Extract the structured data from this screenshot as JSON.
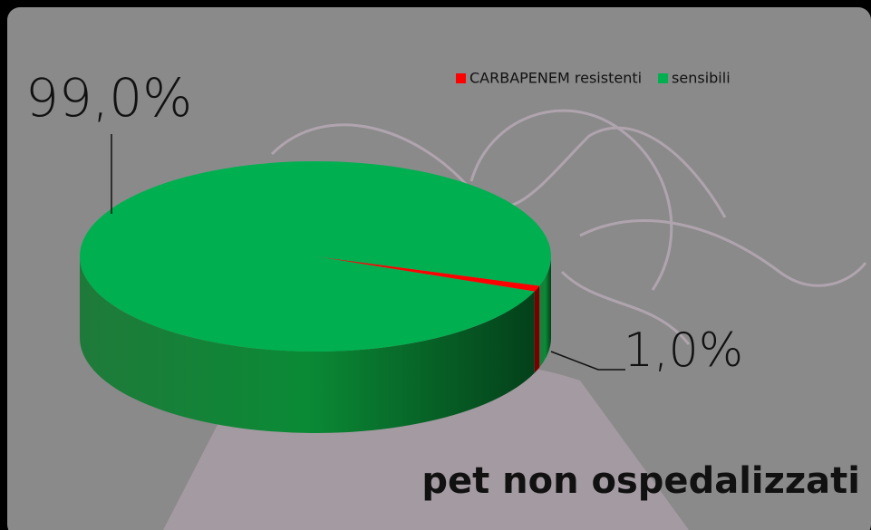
{
  "chart_data": {
    "type": "pie",
    "categories": [
      "CARBAPENEM resistenti",
      "sensibili"
    ],
    "values": [
      1.0,
      99.0
    ],
    "value_labels": [
      "1,0%",
      "99,0%"
    ],
    "colors": [
      "#ff0000",
      "#00b050"
    ],
    "annotation": "pet non ospedalizzati",
    "legend": "top-right"
  }
}
